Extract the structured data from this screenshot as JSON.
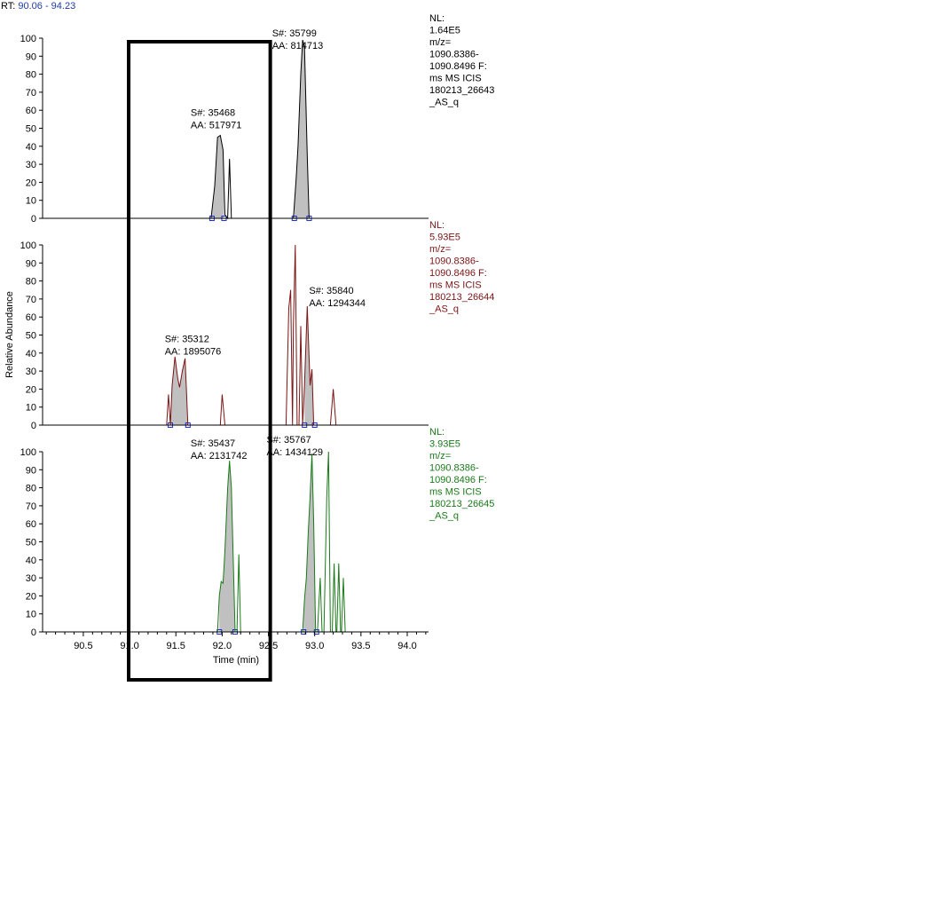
{
  "header": {
    "rt_label": "RT:",
    "rt_range": "90.06 - 94.23"
  },
  "chart_data": {
    "type": "line",
    "xlabel": "Time (min)",
    "ylabel": "Relative Abundance",
    "xlim": [
      90.06,
      94.23
    ],
    "ylim": [
      0,
      100
    ],
    "x_ticks": [
      "90.5",
      "91.0",
      "91.5",
      "92.0",
      "92.5",
      "93.0",
      "93.5",
      "94.0"
    ],
    "y_ticks": [
      "0",
      "10",
      "20",
      "30",
      "40",
      "50",
      "60",
      "70",
      "80",
      "90",
      "100"
    ],
    "highlight_box": {
      "x_range": [
        90.99,
        92.52
      ]
    },
    "panels": [
      {
        "color": "#000000",
        "info": [
          "NL:",
          "1.64E5",
          "m/z=",
          "1090.8386-",
          "1090.8496 F:",
          "ms  MS  ICIS",
          "180213_26643",
          "_AS_q"
        ],
        "peaks": [
          {
            "label": [
              "S#: 35468",
              "AA: 517971"
            ],
            "label_x": 91.66,
            "label_y": 57,
            "fill_range": [
              91.89,
              92.02
            ]
          },
          {
            "label": [
              "S#: 35799",
              "AA: 814713"
            ],
            "label_x": 92.54,
            "label_y": 101,
            "fill_range": [
              92.78,
              92.94
            ]
          }
        ],
        "points": [
          [
            91.88,
            0
          ],
          [
            91.92,
            18
          ],
          [
            91.95,
            45
          ],
          [
            91.98,
            46
          ],
          [
            92.01,
            38
          ],
          [
            92.03,
            2
          ],
          [
            92.06,
            0
          ],
          [
            92.08,
            33
          ],
          [
            92.1,
            0
          ],
          [
            92.77,
            0
          ],
          [
            92.8,
            22
          ],
          [
            92.82,
            40
          ],
          [
            92.85,
            80
          ],
          [
            92.87,
            99
          ],
          [
            92.89,
            95
          ],
          [
            92.92,
            35
          ],
          [
            92.94,
            0
          ]
        ]
      },
      {
        "color": "#7b1414",
        "info": [
          "NL:",
          "5.93E5",
          "m/z=",
          "1090.8386-",
          "1090.8496 F:",
          "ms  MS  ICIS",
          "180213_26644",
          "_AS_q"
        ],
        "peaks": [
          {
            "label": [
              "S#: 35840",
              "AA: 1294344"
            ],
            "label_x": 92.94,
            "label_y": 73,
            "fill_range": [
              92.89,
              93.0
            ]
          },
          {
            "label": [
              "S#: 35312",
              "AA: 1895076"
            ],
            "label_x": 91.38,
            "label_y": 46,
            "fill_range": [
              91.44,
              91.63
            ]
          }
        ],
        "points": [
          [
            91.4,
            0
          ],
          [
            91.42,
            17
          ],
          [
            91.44,
            0
          ],
          [
            91.46,
            22
          ],
          [
            91.49,
            38
          ],
          [
            91.52,
            26
          ],
          [
            91.54,
            21
          ],
          [
            91.57,
            30
          ],
          [
            91.6,
            37
          ],
          [
            91.63,
            0
          ],
          [
            91.98,
            0
          ],
          [
            92.0,
            17
          ],
          [
            92.03,
            0
          ],
          [
            92.69,
            0
          ],
          [
            92.72,
            65
          ],
          [
            92.74,
            75
          ],
          [
            92.76,
            0
          ],
          [
            92.77,
            55
          ],
          [
            92.79,
            100
          ],
          [
            92.81,
            0
          ],
          [
            92.83,
            0
          ],
          [
            92.85,
            55
          ],
          [
            92.87,
            0
          ],
          [
            92.89,
            22
          ],
          [
            92.92,
            66
          ],
          [
            92.95,
            22
          ],
          [
            92.97,
            31
          ],
          [
            92.99,
            0
          ],
          [
            93.17,
            0
          ],
          [
            93.2,
            20
          ],
          [
            93.23,
            0
          ]
        ]
      },
      {
        "color": "#1a7a1a",
        "info": [
          "NL:",
          "3.93E5",
          "m/z=",
          "1090.8386-",
          "1090.8496 F:",
          "ms  MS  ICIS",
          "180213_26645",
          "_AS_q"
        ],
        "peaks": [
          {
            "label": [
              "S#: 35437",
              "AA: 2131742"
            ],
            "label_x": 91.66,
            "label_y": 103,
            "fill_range": [
              91.97,
              92.14
            ]
          },
          {
            "label": [
              "S#: 35767",
              "AA: 1434129"
            ],
            "label_x": 92.48,
            "label_y": 105,
            "fill_range": [
              92.88,
              93.02
            ]
          }
        ],
        "points": [
          [
            91.95,
            0
          ],
          [
            91.97,
            20
          ],
          [
            91.99,
            28
          ],
          [
            92.01,
            27
          ],
          [
            92.03,
            45
          ],
          [
            92.06,
            80
          ],
          [
            92.08,
            95
          ],
          [
            92.1,
            80
          ],
          [
            92.12,
            40
          ],
          [
            92.14,
            0
          ],
          [
            92.16,
            0
          ],
          [
            92.18,
            43
          ],
          [
            92.2,
            0
          ],
          [
            92.87,
            0
          ],
          [
            92.89,
            18
          ],
          [
            92.91,
            30
          ],
          [
            92.93,
            55
          ],
          [
            92.95,
            75
          ],
          [
            92.97,
            99
          ],
          [
            92.99,
            60
          ],
          [
            93.01,
            0
          ],
          [
            93.03,
            0
          ],
          [
            93.06,
            30
          ],
          [
            93.08,
            0
          ],
          [
            93.1,
            0
          ],
          [
            93.13,
            75
          ],
          [
            93.15,
            100
          ],
          [
            93.17,
            0
          ],
          [
            93.19,
            0
          ],
          [
            93.21,
            38
          ],
          [
            93.23,
            0
          ],
          [
            93.24,
            0
          ],
          [
            93.26,
            38
          ],
          [
            93.28,
            0
          ],
          [
            93.29,
            0
          ],
          [
            93.31,
            30
          ],
          [
            93.33,
            0
          ]
        ]
      }
    ]
  }
}
